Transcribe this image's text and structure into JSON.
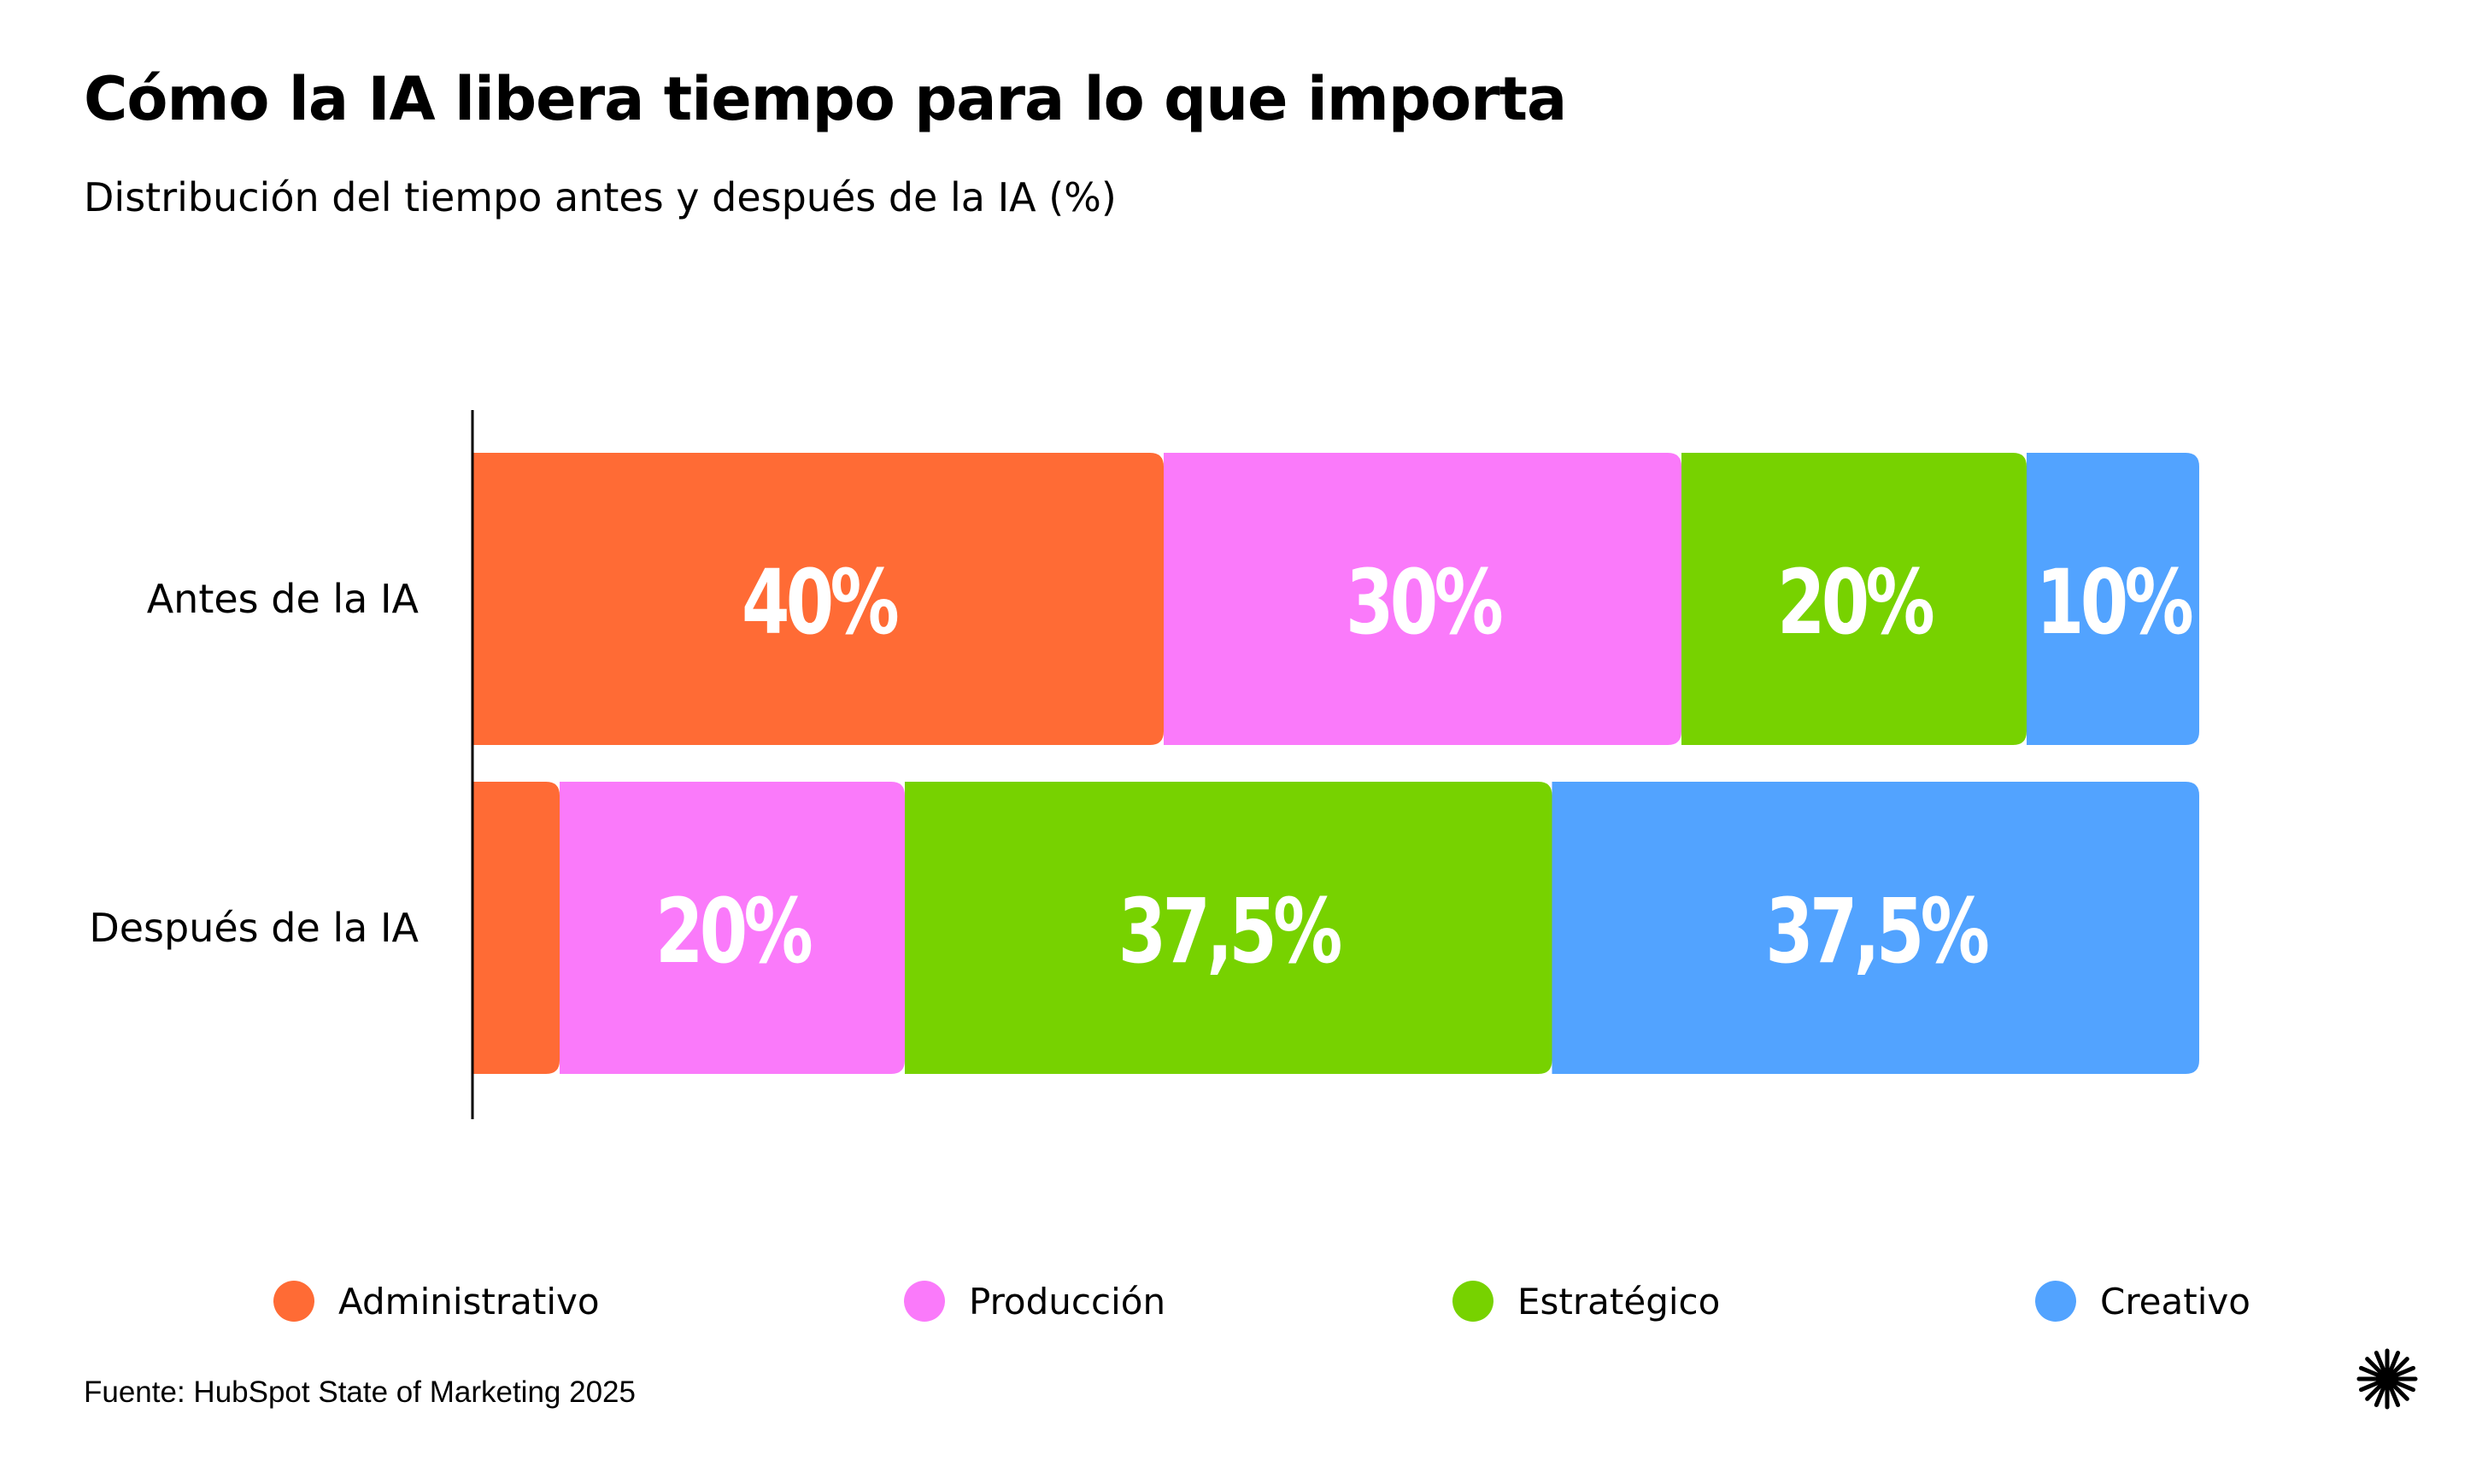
{
  "chart_data": {
    "type": "bar",
    "orientation": "horizontal",
    "stacked": true,
    "title": "Cómo la IA libera tiempo para lo que importa",
    "subtitle": "Distribución del tiempo antes y después de la IA (%)",
    "categories": [
      "Antes de la IA",
      "Después de la IA"
    ],
    "series": [
      {
        "name": "Administrativo",
        "color": "#FF6B35",
        "values": [
          40,
          5
        ],
        "labels": [
          "40%",
          ""
        ]
      },
      {
        "name": "Producción",
        "color": "#FA7AFA",
        "values": [
          30,
          20
        ],
        "labels": [
          "30%",
          "20%"
        ]
      },
      {
        "name": "Estratégico",
        "color": "#77D200",
        "values": [
          20,
          37.5
        ],
        "labels": [
          "20%",
          "37,5%"
        ]
      },
      {
        "name": "Creativo",
        "color": "#52A3FF",
        "values": [
          10,
          37.5
        ],
        "labels": [
          "10%",
          "37,5%"
        ]
      }
    ],
    "xlim": [
      0,
      100
    ],
    "grid": false,
    "legend_position": "bottom",
    "source": "Fuente: HubSpot State of Marketing 2025"
  },
  "colors": {
    "background": "#FFFFFF",
    "text": "#000000",
    "bar_label": "#FFFFFF"
  },
  "icons": {
    "brand_logo": "asterisk-burst-icon"
  }
}
